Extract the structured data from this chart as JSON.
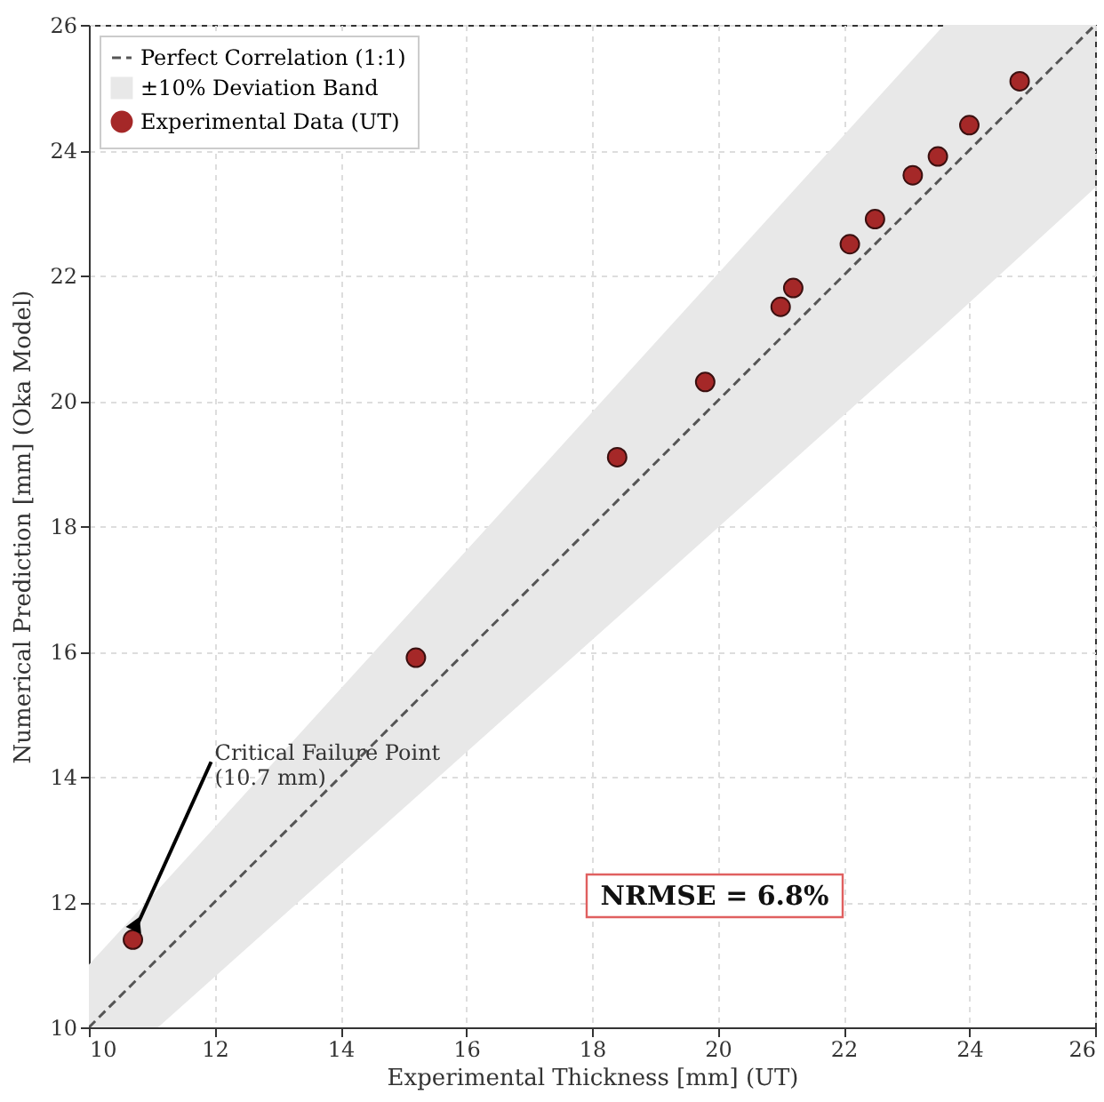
{
  "chart_data": {
    "type": "scatter",
    "xlabel": "Experimental Thickness [mm] (UT)",
    "ylabel": "Numerical Prediction [mm] (Oka Model)",
    "xlim": [
      10,
      26
    ],
    "ylim": [
      10,
      26
    ],
    "xticks": [
      10,
      12,
      14,
      16,
      18,
      20,
      22,
      24,
      26
    ],
    "yticks": [
      10,
      12,
      14,
      16,
      18,
      20,
      22,
      24,
      26
    ],
    "grid": true,
    "legend": "top left",
    "series": [
      {
        "name": "Perfect Correlation (1:1)",
        "type": "line",
        "color": "#555555",
        "line_style": "dashed",
        "marker": "none",
        "x": [
          10,
          11.1,
          23.6,
          26
        ],
        "values": [
          10,
          11.1,
          23.6,
          26
        ],
        "lower": [
          10,
          10,
          21.2,
          23.4
        ],
        "upper": [
          11,
          12.2,
          26,
          26
        ]
      },
      {
        "name": "±10% Deviation Band",
        "type": "area",
        "color": "#e8e8e8"
      },
      {
        "name": "Experimental Data (UT)",
        "color": "#a52828",
        "marker": "circle",
        "x": [
          10.7,
          15.2,
          18.4,
          19.8,
          21.0,
          21.2,
          22.1,
          22.5,
          23.1,
          23.5,
          24.0,
          24.8
        ],
        "values": [
          11.4,
          15.9,
          19.1,
          20.3,
          21.5,
          21.8,
          22.5,
          22.9,
          23.6,
          23.9,
          24.4,
          25.1
        ]
      }
    ],
    "annotations": [
      {
        "text": "Critical Failure Point\n(10.7 mm)",
        "x": 10.7,
        "y": 11.4
      },
      "NRMSE = 6.8%"
    ]
  }
}
